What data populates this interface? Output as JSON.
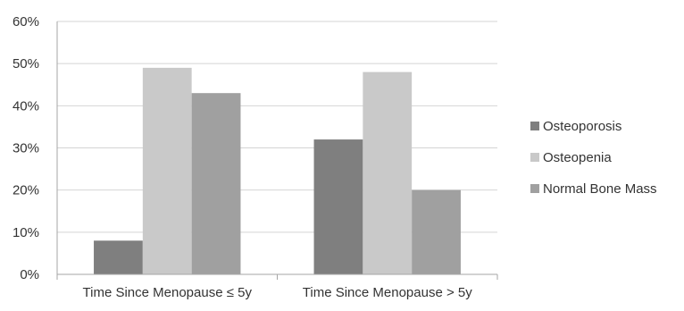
{
  "chart_data": {
    "type": "bar",
    "categories": [
      "Time Since Menopause ≤ 5y",
      "Time Since Menopause > 5y"
    ],
    "series": [
      {
        "name": "Osteoporosis",
        "values": [
          8,
          32
        ],
        "color": "#7f7f7f"
      },
      {
        "name": "Osteopenia",
        "values": [
          49,
          48
        ],
        "color": "#c9c9c9"
      },
      {
        "name": "Normal Bone Mass",
        "values": [
          43,
          20
        ],
        "color": "#a0a0a0"
      }
    ],
    "yticks": [
      "0%",
      "10%",
      "20%",
      "30%",
      "40%",
      "50%",
      "60%"
    ],
    "ylim": [
      0,
      60
    ],
    "grid": true,
    "legend_position": "right"
  }
}
